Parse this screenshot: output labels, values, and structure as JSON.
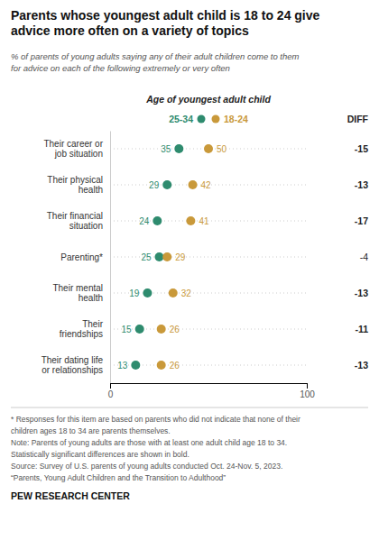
{
  "chart_data": {
    "type": "dot",
    "title": "Parents whose youngest adult child is 18 to 24 give\nadvice more often on a variety of topics",
    "subtitle": "% of parents of young adults saying any of their adult children come to them\nfor advice on each of the following extremely or very often",
    "legend_title": "Age of youngest adult child",
    "diff_label": "DIFF",
    "categories": [
      "Their career or\njob situation",
      "Their physical\nhealth",
      "Their financial\nsituation",
      "Parenting*",
      "Their mental\nhealth",
      "Their\nfriendships",
      "Their dating life\nor relationships"
    ],
    "series": [
      {
        "name": "25-34",
        "color": "#2e8b6e",
        "values": [
          35,
          29,
          24,
          25,
          19,
          15,
          13
        ]
      },
      {
        "name": "18-24",
        "color": "#c9993a",
        "values": [
          50,
          42,
          41,
          29,
          32,
          26,
          26
        ]
      }
    ],
    "diffs": [
      -15,
      -13,
      -17,
      -4,
      -13,
      -11,
      -13
    ],
    "significant": [
      true,
      true,
      true,
      false,
      true,
      true,
      true
    ],
    "xlim": [
      0,
      100
    ],
    "xticks": [
      0,
      100
    ],
    "data_labels": true,
    "legend": "top",
    "annotations": [
      "* Responses for this item are based on parents who did not indicate that none of their",
      "children ages 18 to 34 are parents themselves.",
      "Note: Parents of young adults are those with at least one adult child age 18 to 34.",
      "Statistically significant differences are shown in bold.",
      "Source: Survey of U.S. parents of young adults conducted Oct. 24-Nov. 5, 2023.",
      "“Parents, Young Adult Children and the Transition to Adulthood”",
      "PEW RESEARCH CENTER"
    ]
  }
}
